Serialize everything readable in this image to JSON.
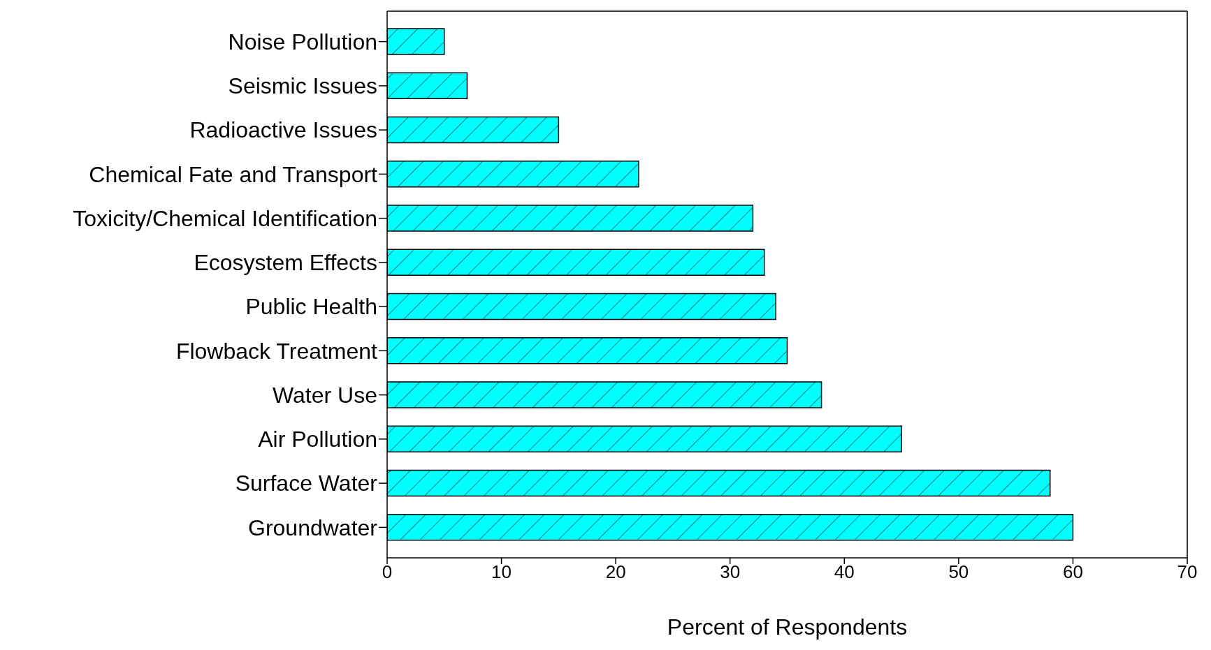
{
  "chart_data": {
    "type": "bar",
    "orientation": "horizontal",
    "xlabel": "Percent of Respondents",
    "categories": [
      "Noise Pollution",
      "Seismic Issues",
      "Radioactive Issues",
      "Chemical Fate and Transport",
      "Toxicity/Chemical Identification",
      "Ecosystem Effects",
      "Public Health",
      "Flowback Treatment",
      "Water Use",
      "Air Pollution",
      "Surface Water",
      "Groundwater"
    ],
    "values": [
      5,
      7,
      15,
      22,
      32,
      33,
      34,
      35,
      38,
      45,
      58,
      60
    ],
    "color": "#00ffff",
    "xlim": [
      0,
      70
    ],
    "xticks": [
      0,
      10,
      20,
      30,
      40,
      50,
      60,
      70
    ],
    "grid": false,
    "legend": false
  }
}
